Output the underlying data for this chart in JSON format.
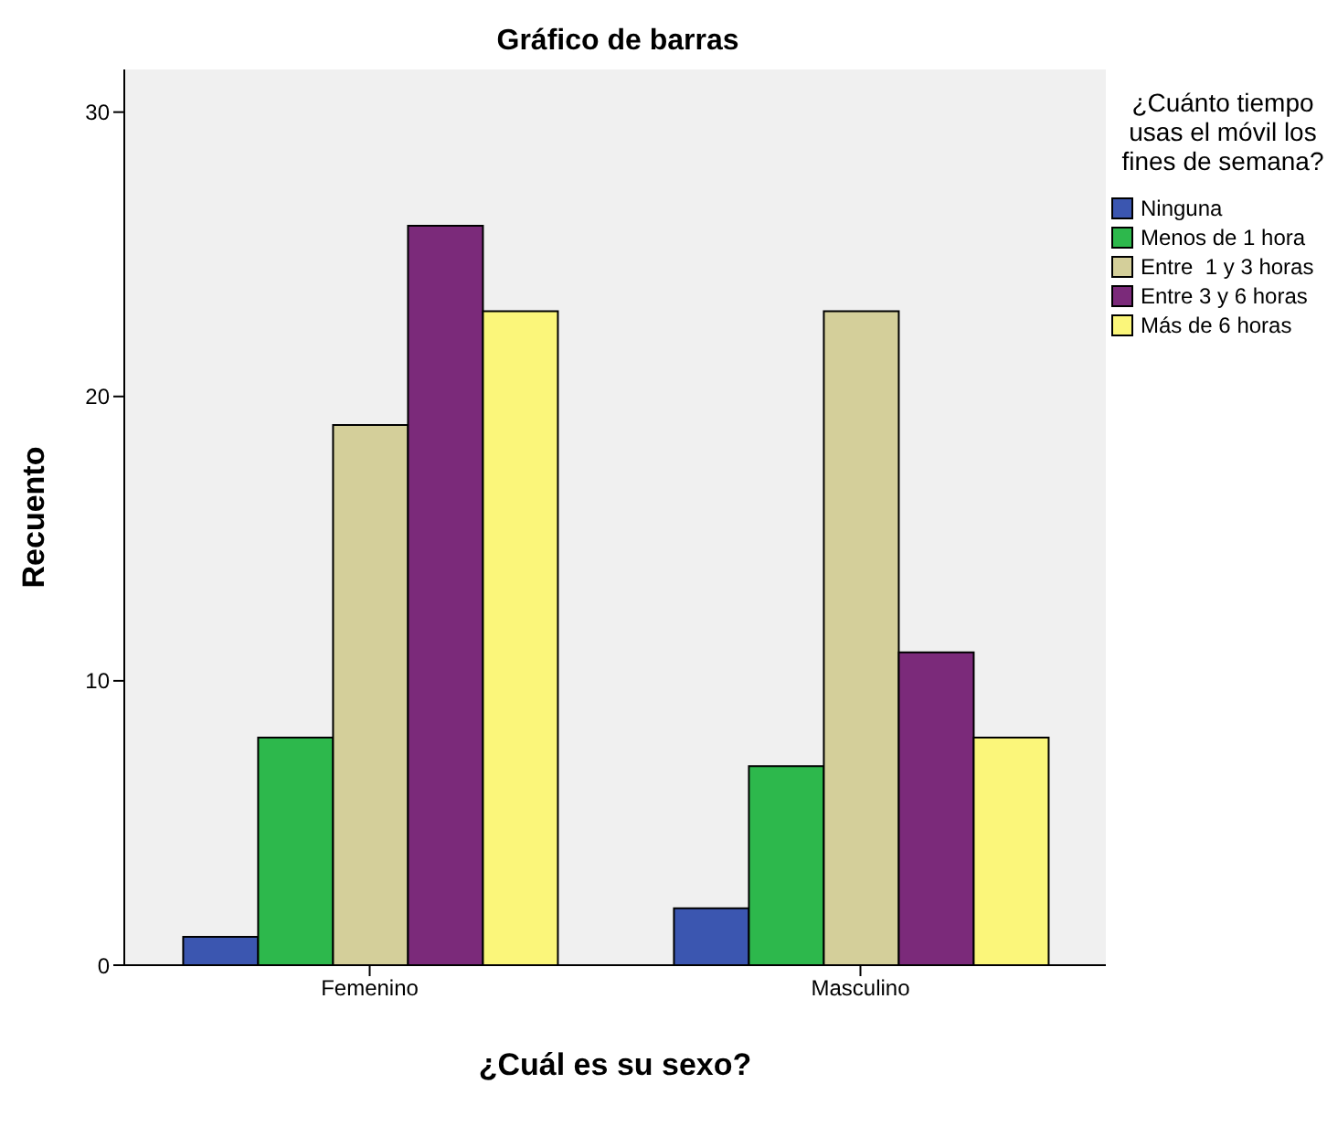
{
  "chart_data": {
    "type": "bar",
    "title": "Gráfico de barras",
    "xlabel": "¿Cuál es su sexo?",
    "ylabel": "Recuento",
    "legend_title": "¿Cuánto tiempo usas el móvil los fines de semana?",
    "categories": [
      "Femenino",
      "Masculino"
    ],
    "series": [
      {
        "name": "Ninguna",
        "color": "#3b56b0",
        "values": [
          1,
          2
        ]
      },
      {
        "name": "Menos de 1 hora",
        "color": "#2db84c",
        "values": [
          8,
          7
        ]
      },
      {
        "name": "Entre  1 y 3 horas",
        "color": "#d4cf9a",
        "values": [
          19,
          23
        ]
      },
      {
        "name": "Entre 3 y 6 horas",
        "color": "#7b2a7a",
        "values": [
          26,
          11
        ]
      },
      {
        "name": "Más de 6 horas",
        "color": "#fbf67a",
        "values": [
          23,
          8
        ]
      }
    ],
    "ylim": [
      0,
      31.5
    ],
    "yticks": [
      0,
      10,
      20,
      30
    ],
    "grid": false,
    "legend": "right"
  }
}
